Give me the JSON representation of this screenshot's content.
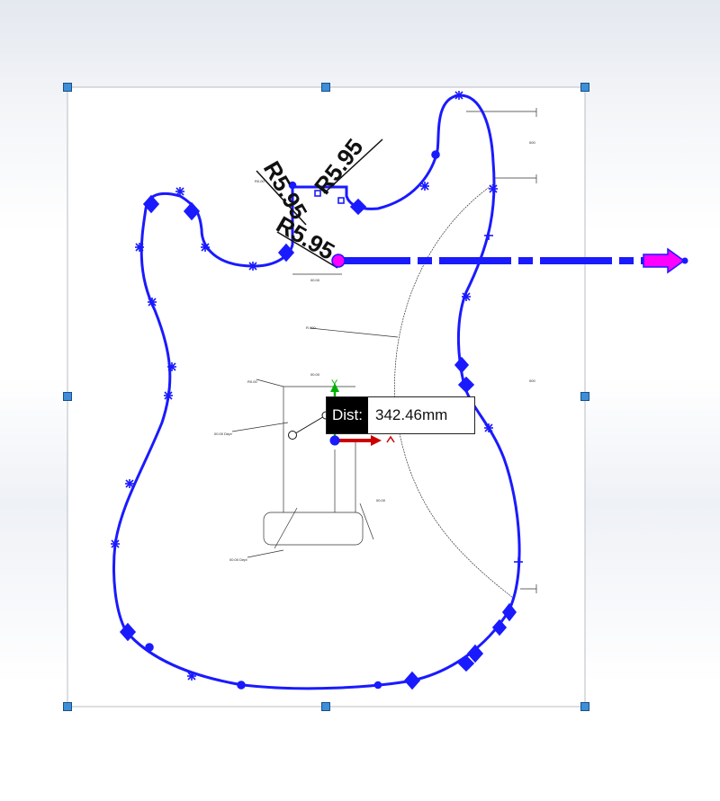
{
  "measure_tip": {
    "label": "Dist:",
    "value": "342.46mm"
  },
  "radius_dims": [
    {
      "text": "R5.95"
    },
    {
      "text": "R5.95"
    },
    {
      "text": "R5.95"
    }
  ],
  "axis_labels": {
    "y": "Y"
  },
  "colors": {
    "sketch": "#1a1aff",
    "arrow": "#ff00ff",
    "x_axis": "#cc0000",
    "y_axis": "#00b000",
    "handle": "#3d8fd8",
    "frame": "#b8bcc4"
  },
  "icons": {
    "move_arrow": "magenta-arrow-icon",
    "origin": "triad-origin-icon"
  }
}
